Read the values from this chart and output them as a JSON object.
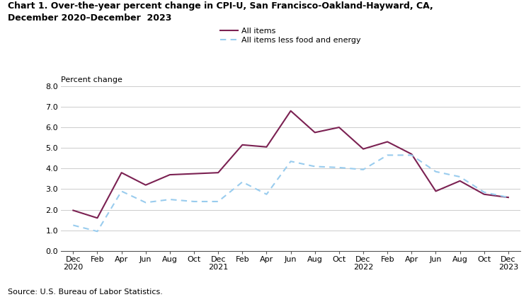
{
  "title_line1": "Chart 1. Over-the-year percent change in CPI-U, San Francisco-Oakland-Hayward, CA,",
  "title_line2": "December 2020–December  2023",
  "ylabel": "Percent change",
  "source": "Source: U.S. Bureau of Labor Statistics.",
  "ylim": [
    0.0,
    8.0
  ],
  "yticks": [
    0.0,
    1.0,
    2.0,
    3.0,
    4.0,
    5.0,
    6.0,
    7.0,
    8.0
  ],
  "x_labels": [
    "Dec\n2020",
    "Feb",
    "Apr",
    "Jun",
    "Aug",
    "Oct",
    "Dec\n2021",
    "Feb",
    "Apr",
    "Jun",
    "Aug",
    "Oct",
    "Dec\n2022",
    "Feb",
    "Apr",
    "Jun",
    "Aug",
    "Oct",
    "Dec\n2023"
  ],
  "all_items": [
    1.97,
    1.6,
    3.8,
    3.2,
    3.7,
    3.75,
    3.8,
    5.15,
    5.05,
    6.8,
    5.75,
    6.0,
    4.95,
    5.3,
    4.7,
    2.9,
    3.4,
    2.75,
    2.6
  ],
  "core_items": [
    1.25,
    0.95,
    2.9,
    2.35,
    2.5,
    2.4,
    2.4,
    3.35,
    2.75,
    4.35,
    4.1,
    4.05,
    3.95,
    4.65,
    4.65,
    3.85,
    3.6,
    2.85,
    2.6
  ],
  "all_items_color": "#7B2152",
  "core_items_color": "#99CCEE",
  "legend_label_all": "All items",
  "legend_label_core": "All items less food and energy"
}
